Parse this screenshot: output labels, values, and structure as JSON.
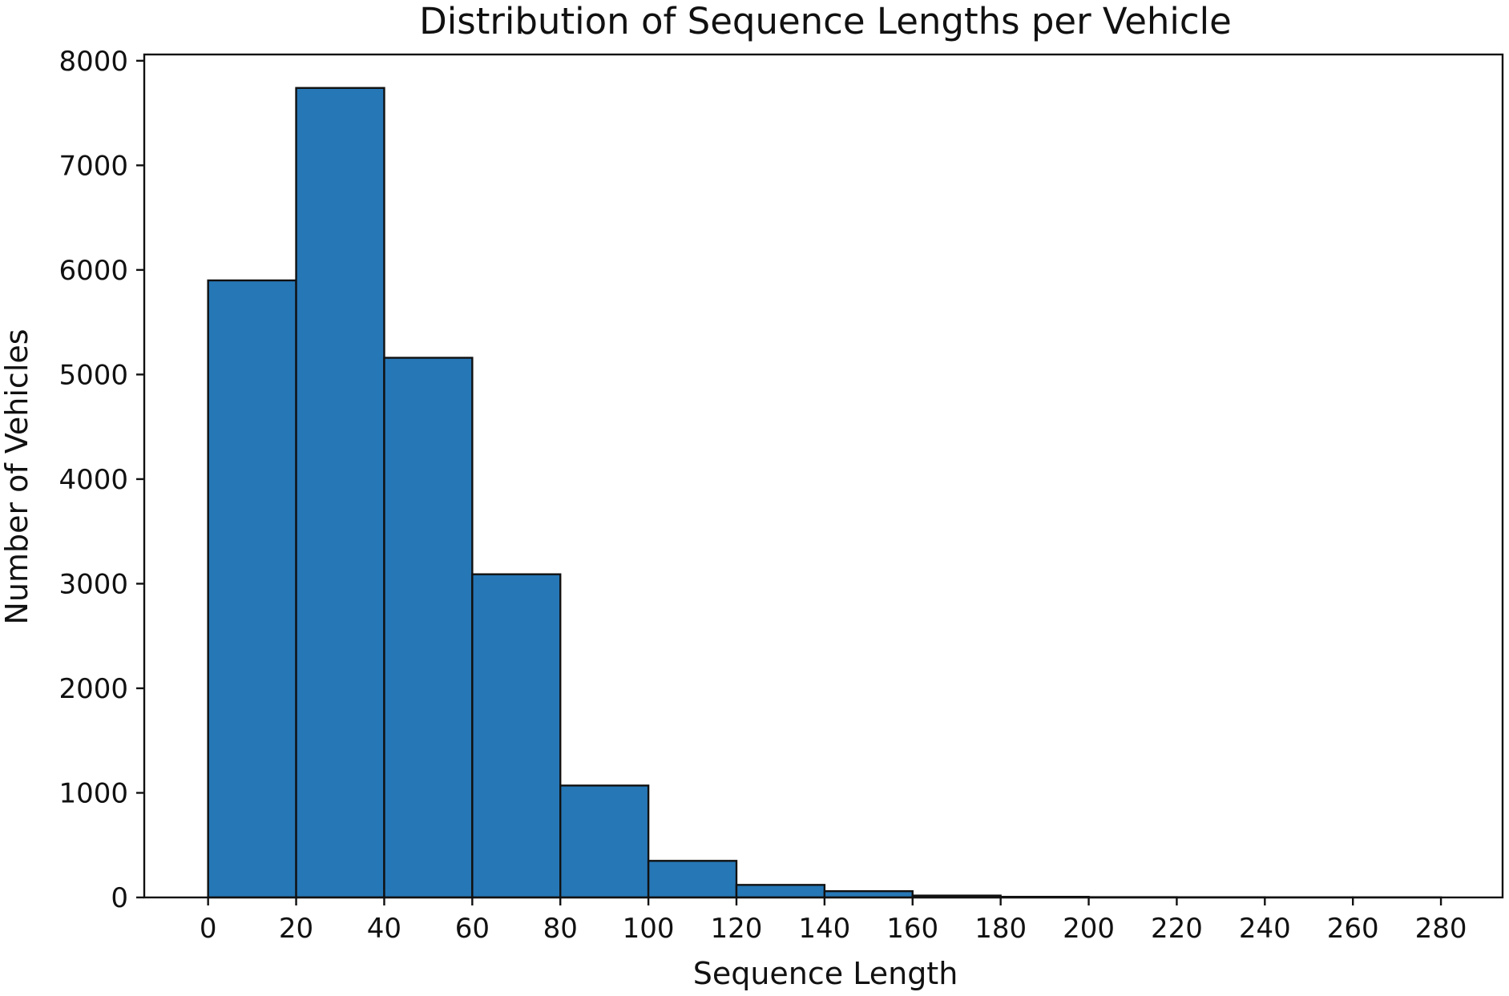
{
  "chart_data": {
    "type": "bar",
    "title": "Distribution of Sequence Lengths per Vehicle",
    "xlabel": "Sequence Length",
    "ylabel": "Number of Vehicles",
    "x_ticks": [
      0,
      20,
      40,
      60,
      80,
      100,
      120,
      140,
      160,
      180,
      200,
      220,
      240,
      260,
      280
    ],
    "y_ticks": [
      0,
      1000,
      2000,
      3000,
      4000,
      5000,
      6000,
      7000,
      8000
    ],
    "xlim": [
      -14.5,
      294
    ],
    "ylim": [
      0,
      8060
    ],
    "bins": [
      {
        "start": 0,
        "end": 20,
        "value": 5900
      },
      {
        "start": 20,
        "end": 40,
        "value": 7740
      },
      {
        "start": 40,
        "end": 60,
        "value": 5160
      },
      {
        "start": 60,
        "end": 80,
        "value": 3090
      },
      {
        "start": 80,
        "end": 100,
        "value": 1070
      },
      {
        "start": 100,
        "end": 120,
        "value": 350
      },
      {
        "start": 120,
        "end": 140,
        "value": 120
      },
      {
        "start": 140,
        "end": 160,
        "value": 60
      },
      {
        "start": 160,
        "end": 180,
        "value": 18
      },
      {
        "start": 180,
        "end": 200,
        "value": 6
      },
      {
        "start": 200,
        "end": 220,
        "value": 3
      },
      {
        "start": 220,
        "end": 240,
        "value": 2
      },
      {
        "start": 240,
        "end": 260,
        "value": 1
      },
      {
        "start": 260,
        "end": 280,
        "value": 1
      }
    ],
    "bar_color": "#2677b6",
    "edge_color": "#111111",
    "grid": false,
    "legend": false
  }
}
